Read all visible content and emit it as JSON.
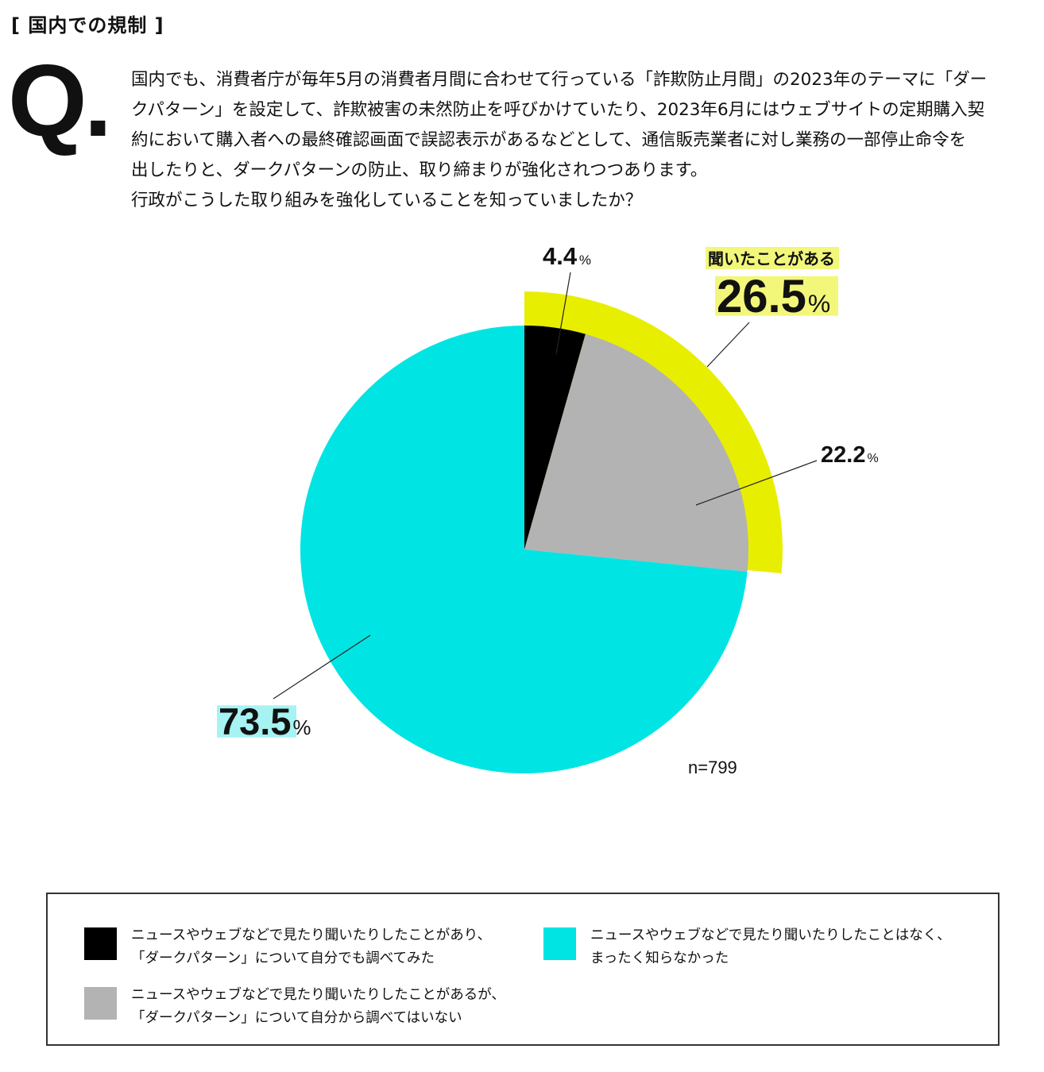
{
  "header": {
    "section_label": "[ 国内での規制 ]",
    "q_mark": "Q."
  },
  "question": {
    "lines": [
      "国内でも、消費者庁が毎年5月の消費者月間に合わせて行っている「詐欺防止月間」の2023年のテーマに「ダー",
      "クパターン」を設定して、詐欺被害の未然防止を呼びかけていたり、2023年6月にはウェブサイトの定期購入契",
      "約において購入者への最終確認画面で誤認表示があるなどとして、通信販売業者に対し業務の一部停止命令を",
      "出したりと、ダークパターンの防止、取り締まりが強化されつつあります。",
      "行政がこうした取り組みを強化していることを知っていましたか？"
    ]
  },
  "chart_data": {
    "type": "pie",
    "sample_size": "n=799",
    "slices": [
      {
        "value": 4.4,
        "label_value": "4.4",
        "color": "#000000"
      },
      {
        "value": 22.2,
        "label_value": "22.2",
        "color": "#b3b3b3"
      },
      {
        "value": 73.5,
        "label_value": "73.5",
        "color": "#00e4e4"
      }
    ],
    "group": {
      "label": "聞いたことがある",
      "value": 26.5,
      "label_value": "26.5",
      "color": "#e8ee00",
      "highlight_color": "#f2f77a"
    },
    "percent_sign": "%",
    "cyan_highlight": "#a6f3f3"
  },
  "legend": {
    "items": [
      {
        "line1": "ニュースやウェブなどで見たり聞いたりしたことがあり、",
        "line2": "「ダークパターン」について自分でも調べてみた",
        "color": "#000000"
      },
      {
        "line1": "ニュースやウェブなどで見たり聞いたりしたことがあるが、",
        "line2": "「ダークパターン」について自分から調べてはいない",
        "color": "#b3b3b3"
      },
      {
        "line1": "ニュースやウェブなどで見たり聞いたりしたことはなく、",
        "line2": "まったく知らなかった",
        "color": "#00e4e4"
      }
    ]
  }
}
